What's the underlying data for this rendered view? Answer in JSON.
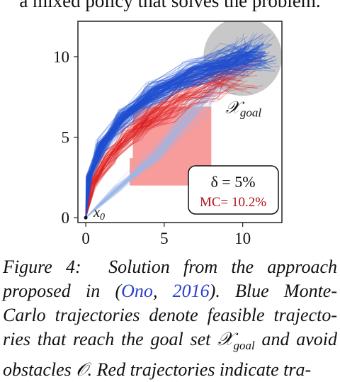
{
  "top_text": "a mixed policy that solves the problem.",
  "chart_data": {
    "type": "line",
    "x_ticks": [
      "0",
      "5",
      "10"
    ],
    "y_ticks": [
      "0",
      "5",
      "10"
    ],
    "xlim": [
      -0.5,
      12.5
    ],
    "ylim": [
      -0.3,
      12.2
    ],
    "obstacle": {
      "label": "𝒪",
      "x": [
        3,
        8
      ],
      "y": [
        2,
        6.9
      ]
    },
    "obstacle_inner_corner": {
      "x": 3,
      "y": 3.7
    },
    "goal": {
      "label": "𝒳goal",
      "center": [
        10,
        10
      ],
      "radius": 2.5
    },
    "start": {
      "label": "x0",
      "point": [
        0,
        0
      ]
    },
    "legend": {
      "delta": "δ = 5%",
      "mc": "MC= 10.2%"
    },
    "series": [
      {
        "color": "#1f4fd0",
        "values": [
          [
            0,
            0
          ],
          [
            0.2,
            2.5
          ],
          [
            1,
            4.5
          ],
          [
            2.5,
            6.3
          ],
          [
            4.5,
            7.8
          ],
          [
            7,
            9
          ],
          [
            9.5,
            9.8
          ],
          [
            11,
            10.3
          ]
        ]
      },
      {
        "color": "#e02020",
        "values": [
          [
            0,
            0
          ],
          [
            0.4,
            2
          ],
          [
            1.5,
            3.8
          ],
          [
            3,
            5.3
          ],
          [
            5,
            6.8
          ],
          [
            7.5,
            8.2
          ],
          [
            10,
            9
          ]
        ]
      },
      {
        "color": "#9db8e8",
        "values": [
          [
            0,
            0
          ],
          [
            2,
            1.8
          ],
          [
            4.5,
            4
          ],
          [
            7,
            6.8
          ],
          [
            9,
            9
          ],
          [
            10.5,
            10.2
          ]
        ]
      }
    ],
    "colors": {
      "blue": "#1f4fd0",
      "red": "#e02020",
      "light_blue": "#9db8e8",
      "obstacle": "#f57f7f",
      "goal": "#c8c8c8",
      "mc_text": "#b0101a"
    }
  },
  "caption": {
    "figure_label": "Figure 4:",
    "line1_rest": "Solution from the approach",
    "line2_a": "proposed in (",
    "cite_author": "Ono",
    "cite_sep": ", ",
    "cite_year": "2016",
    "line2_b": ").   Blue Monte-",
    "line3": "Carlo trajectories denote feasible trajecto-",
    "line4_a": "ries that reach the goal set ",
    "goal_symbol": "𝒳",
    "goal_sub": "goal",
    "line4_b": " and avoid",
    "line5": "obstacles 𝒪. Red trajectories indicate tra-"
  }
}
